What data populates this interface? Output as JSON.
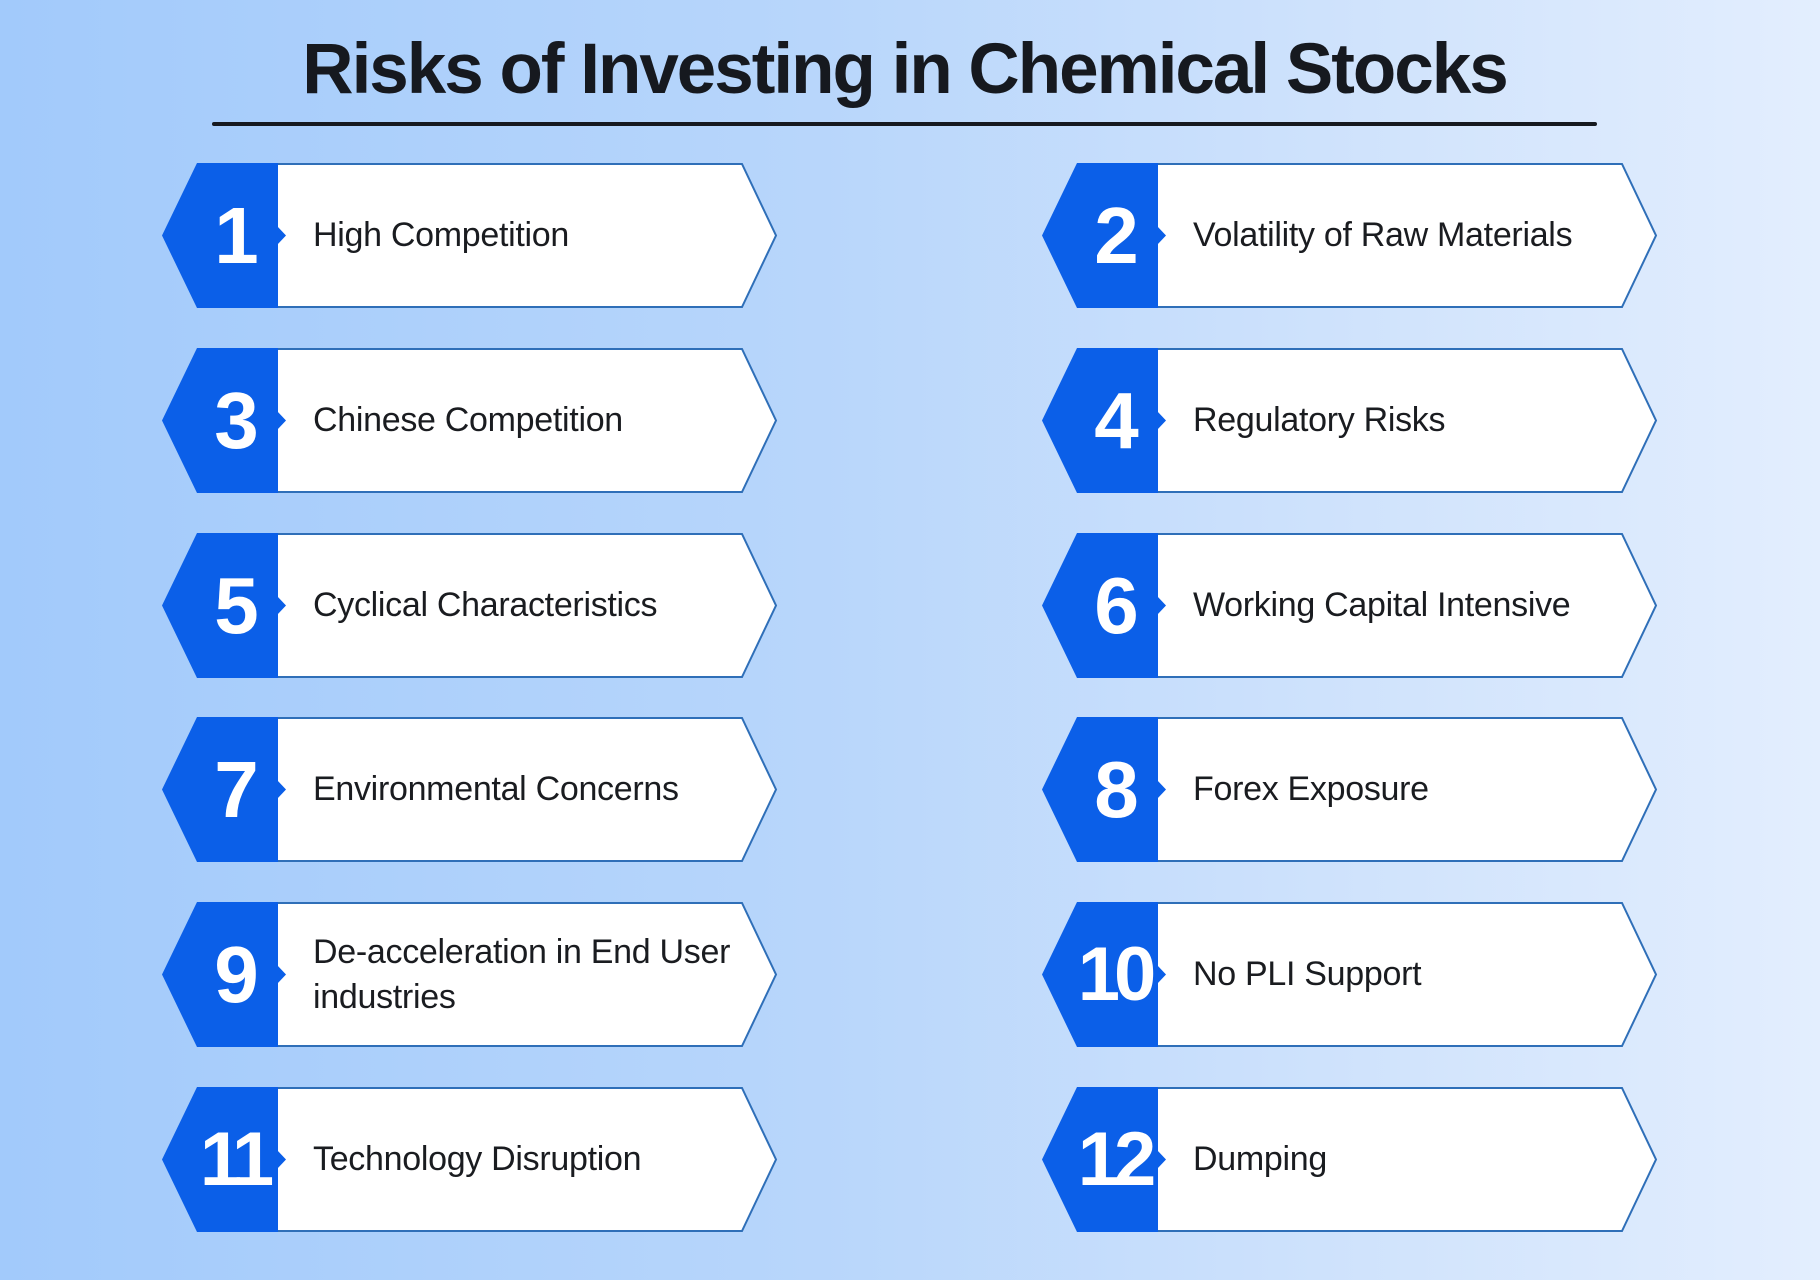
{
  "title": "Risks of Investing in Chemical Stocks",
  "colors": {
    "badge_blue": "#0b5fe8",
    "card_border": "#2f6fb8",
    "card_fill": "#ffffff",
    "text": "#1a1c20",
    "title": "#16191f",
    "background_left": "#a2cafb",
    "background_right": "#e3eefe"
  },
  "risks": [
    {
      "number": "1",
      "label": "High Competition"
    },
    {
      "number": "2",
      "label": "Volatility of Raw Materials"
    },
    {
      "number": "3",
      "label": "Chinese Competition"
    },
    {
      "number": "4",
      "label": "Regulatory Risks"
    },
    {
      "number": "5",
      "label": "Cyclical Characteristics"
    },
    {
      "number": "6",
      "label": "Working Capital Intensive"
    },
    {
      "number": "7",
      "label": "Environmental Concerns"
    },
    {
      "number": "8",
      "label": "Forex Exposure"
    },
    {
      "number": "9",
      "label": "De-acceleration in End User industries"
    },
    {
      "number": "10",
      "label": "No PLI Support"
    },
    {
      "number": "11",
      "label": "Technology Disruption"
    },
    {
      "number": "12",
      "label": "Dumping"
    }
  ]
}
